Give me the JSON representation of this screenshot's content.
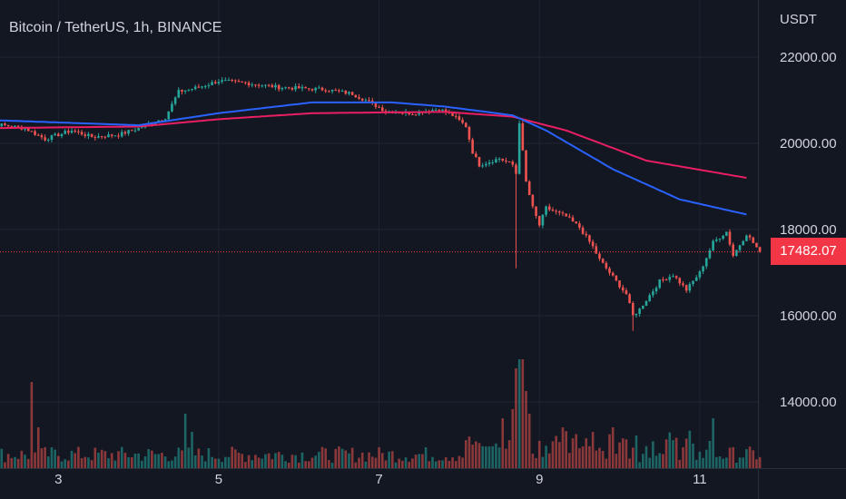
{
  "header": {
    "title": "Bitcoin / TetherUS, 1h, BINANCE"
  },
  "price_axis": {
    "currency": "USDT"
  },
  "current_price_label": "17482.07",
  "colors": {
    "bull": "#26a69a",
    "bear": "#ef5350",
    "ma_fast": "#2962ff",
    "ma_slow": "#e91e63",
    "price_line": "#f23645"
  },
  "chart_data": {
    "type": "line",
    "ylim": [
      13000,
      23000
    ],
    "yticks": [
      "22000.00",
      "20000.00",
      "18000.00",
      "16000.00",
      "14000.00"
    ],
    "ytick_values": [
      22000,
      20000,
      18000,
      16000,
      14000
    ],
    "xticks": [
      "3",
      "5",
      "7",
      "9",
      "11"
    ],
    "xtick_hours": [
      24,
      72,
      120,
      168,
      216
    ],
    "current_price": 17482.07,
    "anchors": [
      [
        0,
        20500
      ],
      [
        14,
        20350
      ],
      [
        20,
        20100
      ],
      [
        28,
        20300
      ],
      [
        34,
        20150
      ],
      [
        42,
        20200
      ],
      [
        48,
        20350
      ],
      [
        56,
        20600
      ],
      [
        60,
        21200
      ],
      [
        66,
        21300
      ],
      [
        72,
        21450
      ],
      [
        80,
        21400
      ],
      [
        90,
        21300
      ],
      [
        104,
        21250
      ],
      [
        112,
        21150
      ],
      [
        116,
        21000
      ],
      [
        122,
        20750
      ],
      [
        130,
        20700
      ],
      [
        138,
        20800
      ],
      [
        142,
        20650
      ],
      [
        146,
        20400
      ],
      [
        148,
        19800
      ],
      [
        150,
        19500
      ],
      [
        156,
        19650
      ],
      [
        160,
        19500
      ],
      [
        161,
        19300
      ],
      [
        162,
        20500
      ],
      [
        164,
        19100
      ],
      [
        166,
        18500
      ],
      [
        168,
        18100
      ],
      [
        170,
        18500
      ],
      [
        176,
        18300
      ],
      [
        180,
        18050
      ],
      [
        184,
        17600
      ],
      [
        186,
        17300
      ],
      [
        190,
        16900
      ],
      [
        194,
        16500
      ],
      [
        196,
        16000
      ],
      [
        198,
        16150
      ],
      [
        204,
        16800
      ],
      [
        208,
        16950
      ],
      [
        212,
        16600
      ],
      [
        216,
        17000
      ],
      [
        220,
        17700
      ],
      [
        224,
        17950
      ],
      [
        226,
        17400
      ],
      [
        230,
        17900
      ],
      [
        234,
        17482
      ]
    ],
    "ma_fast": [
      [
        0,
        20550
      ],
      [
        48,
        20420
      ],
      [
        72,
        20700
      ],
      [
        100,
        20950
      ],
      [
        124,
        20950
      ],
      [
        140,
        20850
      ],
      [
        160,
        20650
      ],
      [
        170,
        20300
      ],
      [
        190,
        19400
      ],
      [
        210,
        18700
      ],
      [
        230,
        18350
      ]
    ],
    "ma_slow": [
      [
        0,
        20350
      ],
      [
        48,
        20390
      ],
      [
        72,
        20560
      ],
      [
        100,
        20700
      ],
      [
        124,
        20720
      ],
      [
        140,
        20730
      ],
      [
        160,
        20620
      ],
      [
        176,
        20300
      ],
      [
        200,
        19600
      ],
      [
        230,
        19200
      ]
    ],
    "volume_spikes": [
      [
        16,
        95
      ],
      [
        18,
        45
      ],
      [
        62,
        60
      ],
      [
        64,
        40
      ],
      [
        157,
        55
      ],
      [
        160,
        65
      ],
      [
        161,
        110
      ],
      [
        162,
        120
      ],
      [
        163,
        120
      ],
      [
        164,
        85
      ],
      [
        165,
        60
      ],
      [
        175,
        45
      ],
      [
        184,
        40
      ],
      [
        190,
        45
      ],
      [
        219,
        30
      ],
      [
        220,
        55
      ]
    ]
  }
}
